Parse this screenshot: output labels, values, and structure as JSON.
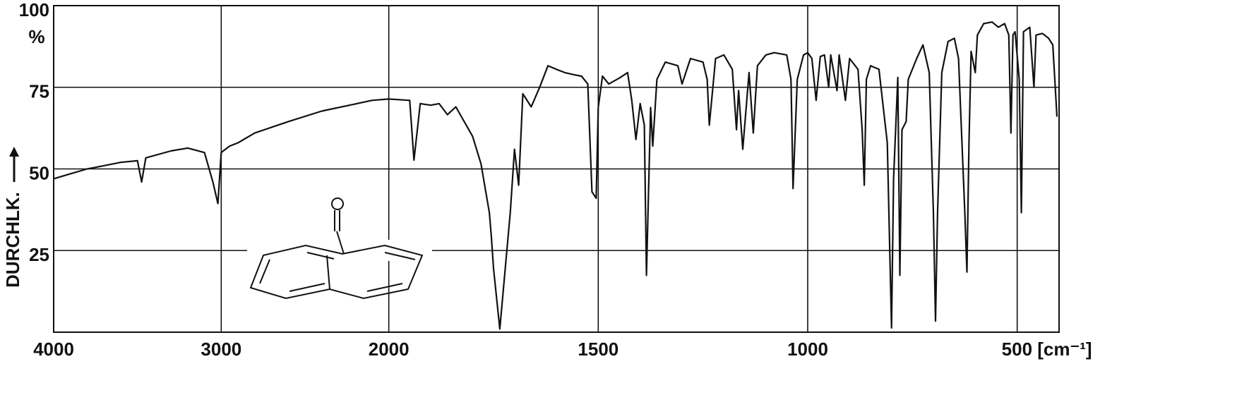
{
  "chart_data": {
    "type": "line",
    "x": [
      4000,
      3900,
      3800,
      3700,
      3600,
      3500,
      3475,
      3450,
      3300,
      3200,
      3100,
      3050,
      3020,
      3000,
      2950,
      2900,
      2800,
      2600,
      2400,
      2200,
      2100,
      2000,
      1950,
      1940,
      1925,
      1900,
      1880,
      1860,
      1840,
      1800,
      1780,
      1760,
      1755,
      1750,
      1735,
      1710,
      1700,
      1690,
      1680,
      1660,
      1640,
      1620,
      1600,
      1580,
      1560,
      1540,
      1525,
      1515,
      1505,
      1500,
      1490,
      1475,
      1450,
      1430,
      1420,
      1410,
      1400,
      1390,
      1385,
      1375,
      1370,
      1360,
      1340,
      1310,
      1300,
      1280,
      1250,
      1240,
      1235,
      1220,
      1200,
      1180,
      1170,
      1165,
      1155,
      1140,
      1130,
      1120,
      1100,
      1080,
      1050,
      1040,
      1035,
      1025,
      1010,
      1000,
      990,
      980,
      970,
      960,
      950,
      945,
      930,
      925,
      910,
      900,
      880,
      870,
      865,
      860,
      850,
      830,
      810,
      800,
      795,
      785,
      780,
      775,
      765,
      760,
      740,
      725,
      710,
      700,
      695,
      690,
      680,
      665,
      650,
      640,
      625,
      620,
      615,
      610,
      600,
      595,
      580,
      560,
      545,
      530,
      520,
      515,
      510,
      505,
      495,
      490,
      485,
      470,
      460,
      455,
      440,
      425,
      415,
      405
    ],
    "values": [
      47,
      48.5,
      50,
      51,
      52,
      52.5,
      46,
      53.4,
      55.5,
      56.4,
      55,
      46,
      39.4,
      55,
      57,
      58,
      61,
      64.5,
      67.7,
      69.9,
      71,
      71.4,
      71,
      52.7,
      70,
      69.5,
      70,
      66.6,
      69,
      60,
      51.6,
      36.6,
      29,
      19.5,
      1,
      36.6,
      56,
      45,
      73,
      69,
      75,
      81.6,
      80.5,
      79.5,
      78.9,
      78.4,
      76,
      43,
      41,
      68.8,
      78.4,
      76,
      77.8,
      79.5,
      71,
      59,
      70,
      63.4,
      17.4,
      68.8,
      57,
      77.4,
      82.7,
      81.6,
      76,
      83.8,
      82.7,
      77.4,
      63.4,
      83.8,
      84.9,
      80.5,
      62,
      74,
      56,
      79.5,
      61,
      81.6,
      84.9,
      85.6,
      84.9,
      77.4,
      44,
      77.4,
      84.9,
      85.6,
      83.8,
      71,
      84.4,
      84.9,
      75,
      84.9,
      74,
      84.9,
      71,
      83.8,
      80.5,
      62,
      45,
      77.4,
      81.6,
      80.5,
      58,
      1.3,
      47,
      78,
      17.4,
      62,
      64.5,
      77.4,
      83.8,
      88,
      79.5,
      36.6,
      3.4,
      36.6,
      79.5,
      89,
      90,
      83.8,
      36.6,
      18.4,
      58,
      86,
      79.5,
      91,
      94.5,
      95,
      93.4,
      94.5,
      91,
      61,
      91,
      92,
      77.4,
      36.6,
      92,
      93.4,
      75,
      91,
      91.5,
      90,
      88,
      66
    ],
    "color": "#111111",
    "xlim": [
      4000,
      400
    ],
    "x_scale_break": 2000,
    "x_scale_ratio": 2.5,
    "xticks": [
      4000,
      3000,
      2000,
      1500,
      1000,
      {
        "value": 500,
        "label": "500 [cm⁻¹]"
      }
    ],
    "ylim": [
      0,
      100
    ],
    "yticks": [
      25,
      50,
      75,
      100
    ],
    "y_unit": "%",
    "y_label": "DURCHLK.",
    "grid": true
  }
}
